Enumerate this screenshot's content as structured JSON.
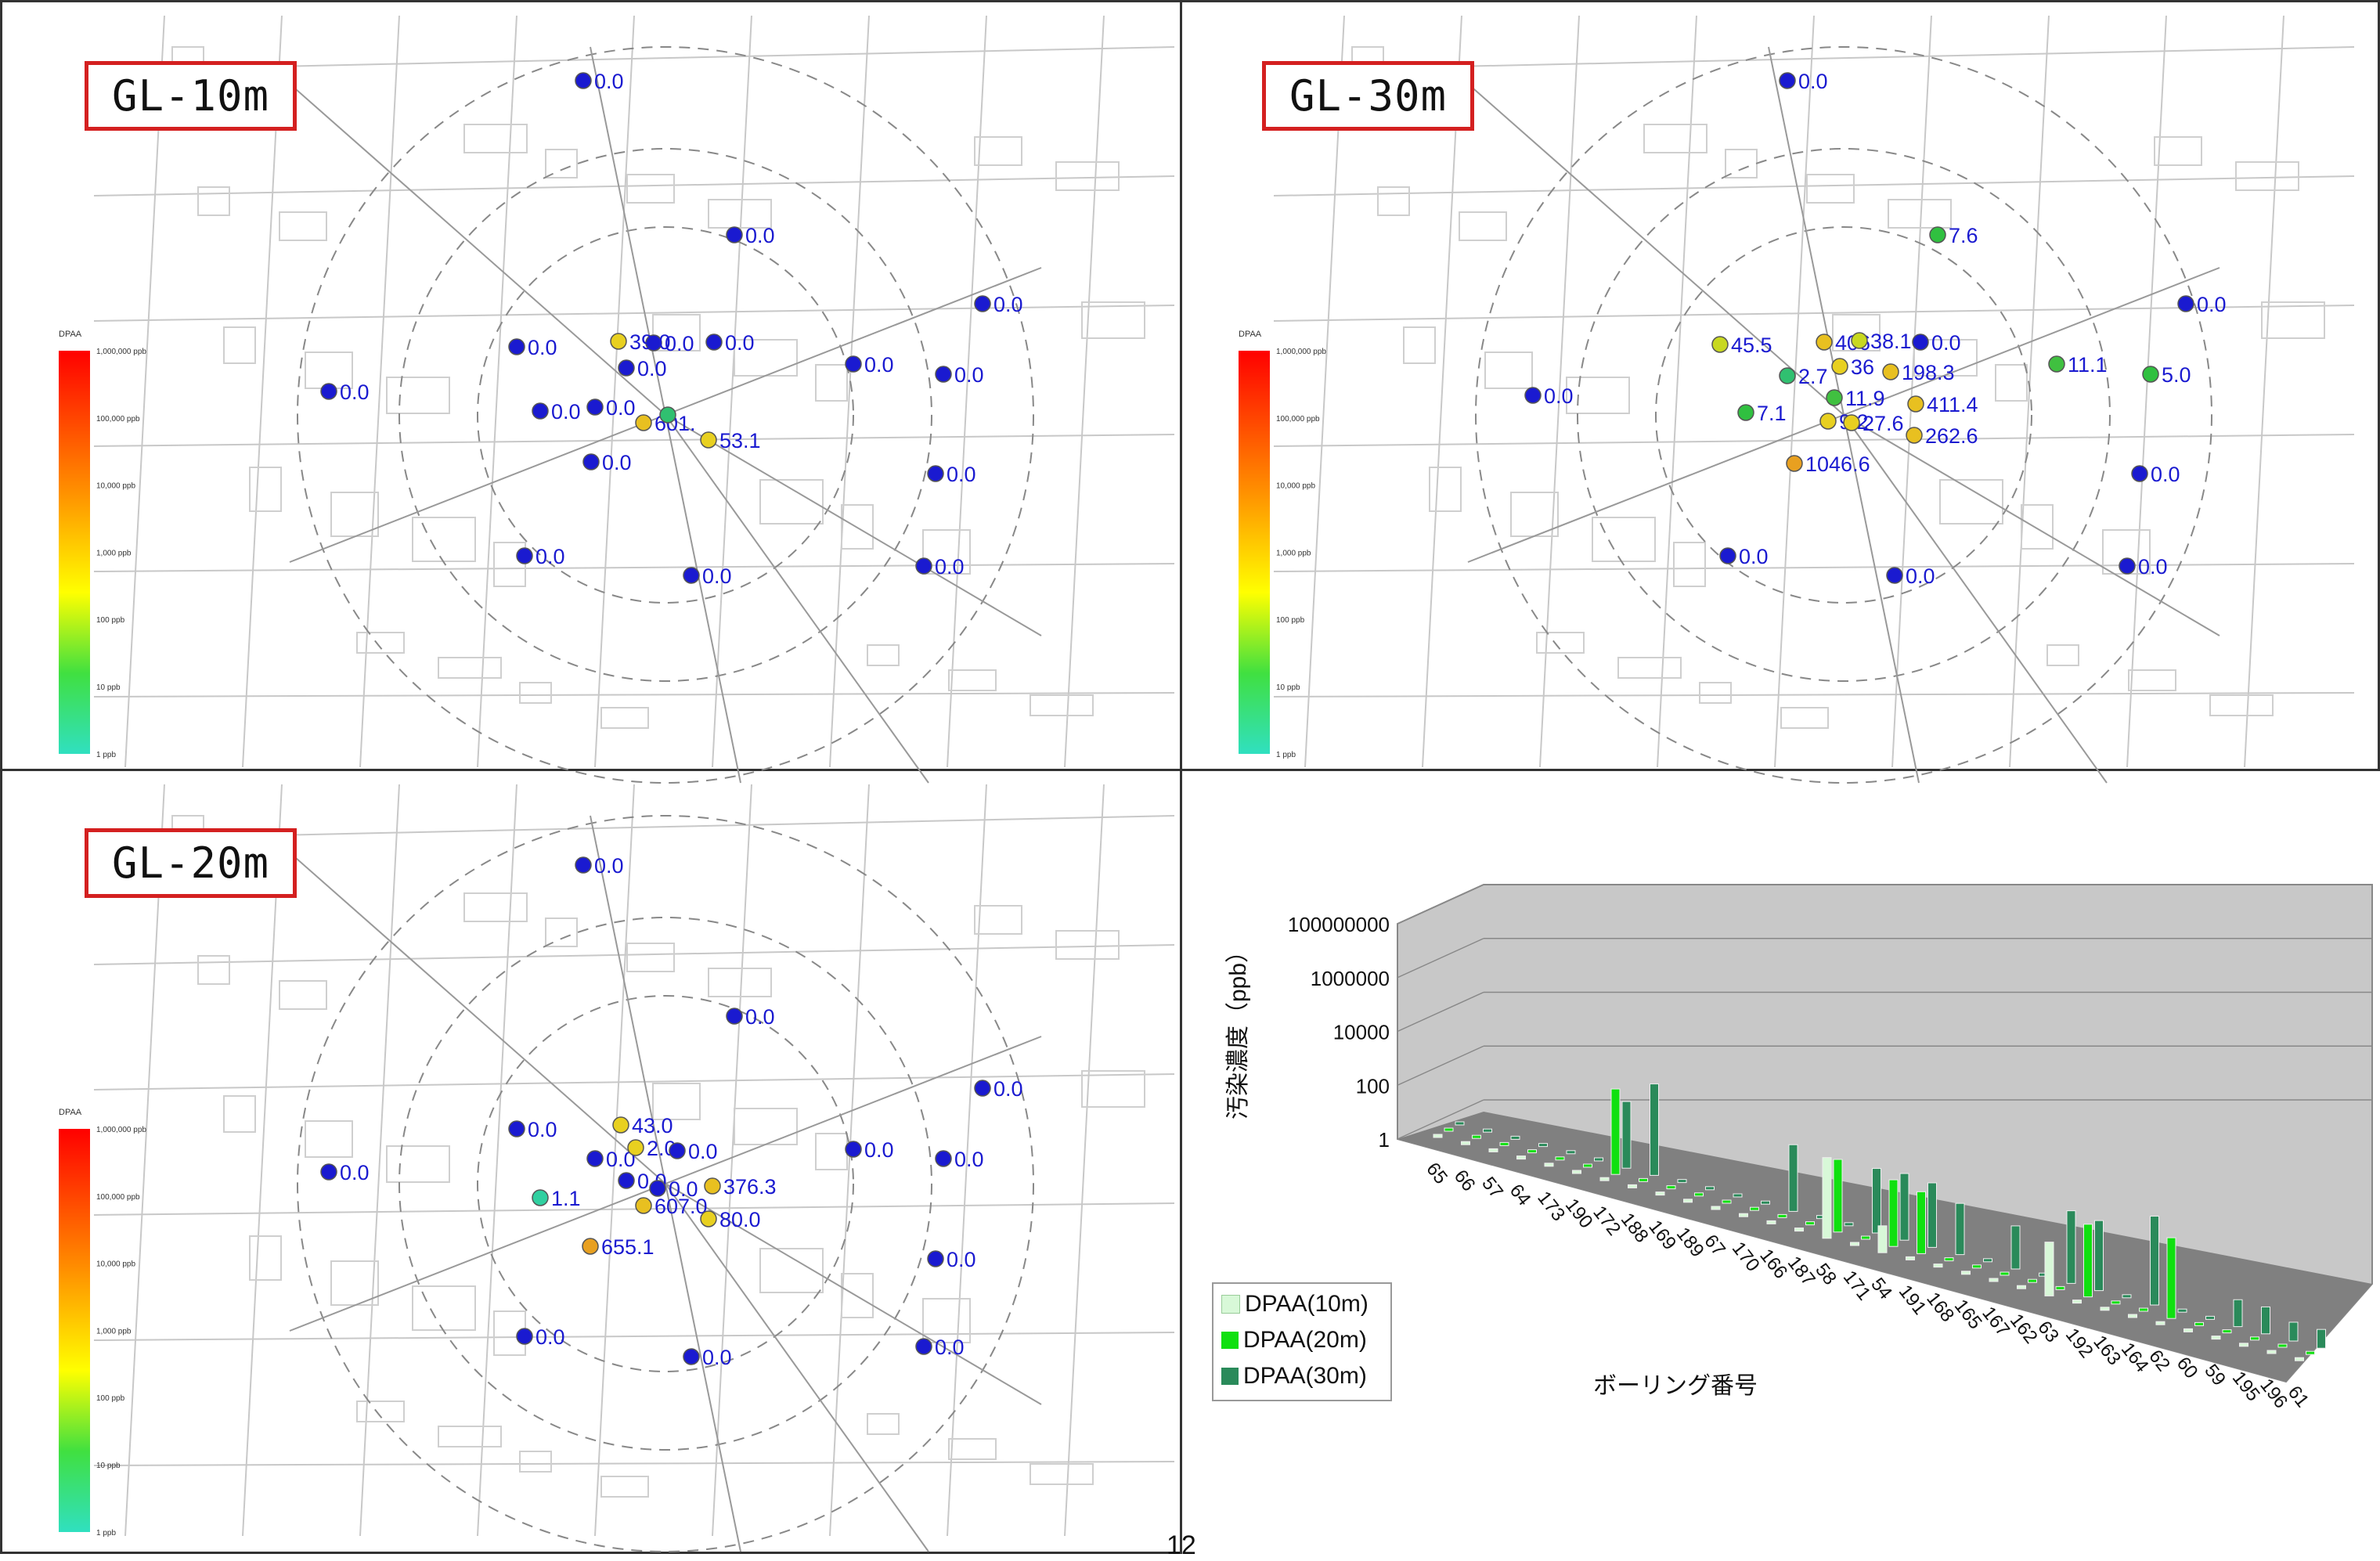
{
  "panels": [
    {
      "id": "gl10",
      "label": "GL-10m",
      "scale": {
        "title": "DPAA",
        "ticks": [
          "1,000,000 ppb",
          "100,000 ppb",
          "10,000 ppb",
          "1,000 ppb",
          "100 ppb",
          "10 ppb",
          "1 ppb"
        ]
      },
      "points": [
        {
          "value": "0.0",
          "color": "#1a1ad0"
        },
        {
          "value": "0.0",
          "color": "#1a1ad0"
        },
        {
          "value": "0.0",
          "color": "#1a1ad0"
        },
        {
          "value": "0.0",
          "color": "#1a1ad0"
        },
        {
          "value": "0.0",
          "color": "#1a1ad0"
        },
        {
          "value": "0.0",
          "color": "#1a1ad0"
        },
        {
          "value": "0.0",
          "color": "#1a1ad0"
        },
        {
          "value": "0.0",
          "color": "#1a1ad0"
        },
        {
          "value": "0.0",
          "color": "#1a1ad0"
        },
        {
          "value": "0.0",
          "color": "#1a1ad0"
        },
        {
          "value": "0.0",
          "color": "#1a1ad0"
        },
        {
          "value": "0.0",
          "color": "#1a1ad0"
        },
        {
          "value": "0.0",
          "color": "#1a1ad0"
        },
        {
          "value": "0.0",
          "color": "#1a1ad0"
        },
        {
          "value": "0.0",
          "color": "#1a1ad0"
        },
        {
          "value": "0.0",
          "color": "#1a1ad0"
        },
        {
          "value": "0.0",
          "color": "#1a1ad0"
        },
        {
          "value": "39.0",
          "color": "#e8d020"
        },
        {
          "value": "601.",
          "color": "#e8c020"
        },
        {
          "value": "",
          "color": "#30c070"
        },
        {
          "value": "53.1",
          "color": "#e8d020"
        }
      ]
    },
    {
      "id": "gl30",
      "label": "GL-30m",
      "scale": {
        "title": "DPAA",
        "ticks": [
          "1,000,000 ppb",
          "100,000 ppb",
          "10,000 ppb",
          "1,000 ppb",
          "100 ppb",
          "10 ppb",
          "1 ppb"
        ]
      },
      "points": [
        {
          "value": "0.0",
          "color": "#1a1ad0"
        },
        {
          "value": "7.6",
          "color": "#30c040"
        },
        {
          "value": "0.0",
          "color": "#1a1ad0"
        },
        {
          "value": "45.5",
          "color": "#c8d820"
        },
        {
          "value": "406",
          "color": "#e8c020"
        },
        {
          "value": "38.1",
          "color": "#c8d820"
        },
        {
          "value": "0.0",
          "color": "#1a1ad0"
        },
        {
          "value": "11.1",
          "color": "#40c040"
        },
        {
          "value": "5.0",
          "color": "#30c040"
        },
        {
          "value": "0.0",
          "color": "#1a1ad0"
        },
        {
          "value": "2.7",
          "color": "#30c070"
        },
        {
          "value": "36",
          "color": "#e8d020"
        },
        {
          "value": "198.3",
          "color": "#e8c020"
        },
        {
          "value": "7.1",
          "color": "#30c040"
        },
        {
          "value": "11.9",
          "color": "#40c040"
        },
        {
          "value": "411.4",
          "color": "#e8c020"
        },
        {
          "value": "9.2",
          "color": "#e8d020"
        },
        {
          "value": "27.6",
          "color": "#e8d020"
        },
        {
          "value": "262.6",
          "color": "#e8c020"
        },
        {
          "value": "1046.6",
          "color": "#e8a020"
        },
        {
          "value": "0.0",
          "color": "#1a1ad0"
        },
        {
          "value": "0.0",
          "color": "#1a1ad0"
        },
        {
          "value": "0.0",
          "color": "#1a1ad0"
        },
        {
          "value": "0.0",
          "color": "#1a1ad0"
        }
      ]
    },
    {
      "id": "gl20",
      "label": "GL-20m",
      "scale": {
        "title": "DPAA",
        "ticks": [
          "1,000,000 ppb",
          "100,000 ppb",
          "10,000 ppb",
          "1,000 ppb",
          "100 ppb",
          "10 ppb",
          "1 ppb"
        ]
      },
      "points": [
        {
          "value": "0.0",
          "color": "#1a1ad0"
        },
        {
          "value": "0.0",
          "color": "#1a1ad0"
        },
        {
          "value": "0.0",
          "color": "#1a1ad0"
        },
        {
          "value": "0.0",
          "color": "#1a1ad0"
        },
        {
          "value": "43.0",
          "color": "#e8d020"
        },
        {
          "value": "0.0",
          "color": "#1a1ad0"
        },
        {
          "value": "0.0",
          "color": "#1a1ad0"
        },
        {
          "value": "0.0",
          "color": "#1a1ad0"
        },
        {
          "value": "0.0",
          "color": "#1a1ad0"
        },
        {
          "value": "2.0",
          "color": "#e8d020"
        },
        {
          "value": "0.0",
          "color": "#1a1ad0"
        },
        {
          "value": "1.1",
          "color": "#30d0a0"
        },
        {
          "value": "0.0",
          "color": "#1a1ad0"
        },
        {
          "value": "376.3",
          "color": "#e8c020"
        },
        {
          "value": "607.0",
          "color": "#e8c020"
        },
        {
          "value": "80.0",
          "color": "#e8d020"
        },
        {
          "value": "655.1",
          "color": "#e8a020"
        },
        {
          "value": "0.0",
          "color": "#1a1ad0"
        },
        {
          "value": "0.0",
          "color": "#1a1ad0"
        },
        {
          "value": "0.0",
          "color": "#1a1ad0"
        },
        {
          "value": "0.0",
          "color": "#1a1ad0"
        },
        {
          "value": "0.0",
          "color": "#1a1ad0"
        }
      ]
    }
  ],
  "chart_data": {
    "type": "bar",
    "subtype": "3d-clustered-log",
    "ylabel": "汚染濃度（ppb）",
    "xlabel": "ボーリング番号",
    "yscale": "log",
    "ylim": [
      1,
      100000000
    ],
    "yticks": [
      "100000000",
      "1000000",
      "10000",
      "100",
      "1"
    ],
    "categories": [
      "65",
      "66",
      "57",
      "64",
      "173",
      "190",
      "172",
      "188",
      "169",
      "189",
      "67",
      "170",
      "166",
      "187",
      "58",
      "171",
      "54",
      "191",
      "168",
      "165",
      "167",
      "162",
      "63",
      "192",
      "163",
      "164",
      "62",
      "60",
      "59",
      "195",
      "196",
      "61"
    ],
    "series": [
      {
        "name": "DPAA(10m)",
        "color": "#d8f8d8",
        "values": [
          1,
          1,
          1,
          1,
          1,
          1,
          1,
          1,
          1,
          1,
          1,
          1,
          1,
          1,
          1000,
          1,
          10,
          1,
          1,
          1,
          1,
          1,
          100,
          1,
          1,
          1,
          1,
          1,
          1,
          1,
          1,
          1
        ]
      },
      {
        "name": "DPAA(20m)",
        "color": "#10e010",
        "values": [
          1,
          1,
          1,
          1,
          1,
          1,
          1500,
          1,
          1,
          1,
          1,
          1,
          1,
          1,
          500,
          1,
          300,
          200,
          1,
          1,
          1,
          1,
          1,
          500,
          1,
          1,
          1000,
          1,
          1,
          1,
          1,
          1
        ]
      },
      {
        "name": "DPAA(30m)",
        "color": "#2a8a5a",
        "values": [
          1,
          1,
          1,
          1,
          1,
          1,
          300,
          2500,
          1,
          1,
          1,
          1,
          300,
          1,
          1,
          250,
          300,
          250,
          80,
          1,
          40,
          1,
          500,
          400,
          1,
          2000,
          1,
          1,
          10,
          10,
          5,
          5
        ]
      }
    ],
    "legend_position": "bottom-left",
    "grid": true
  },
  "page_number": "12"
}
